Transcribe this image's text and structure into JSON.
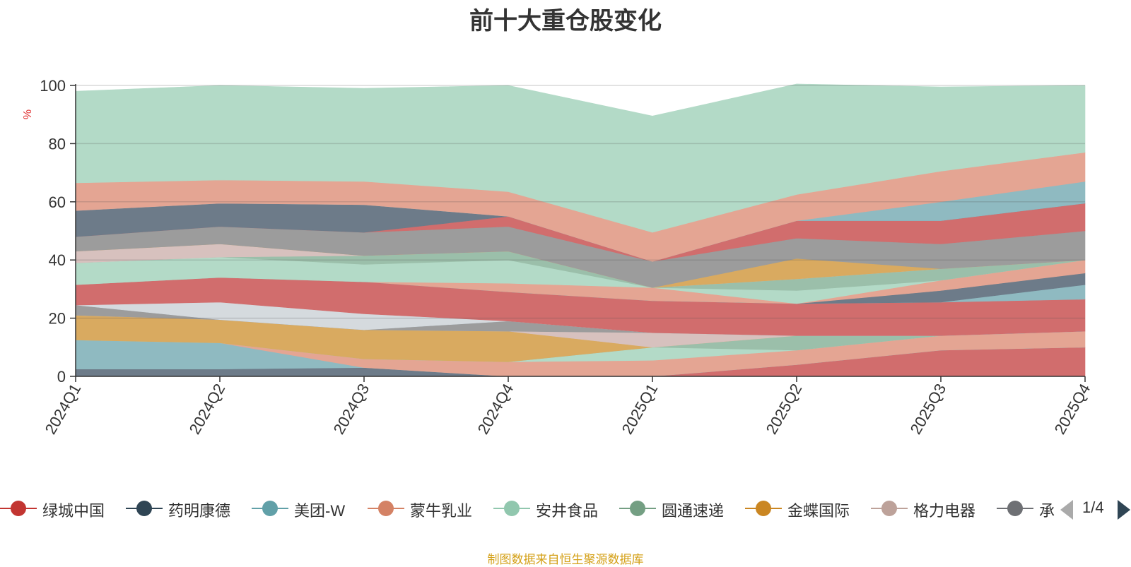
{
  "chart_data": {
    "type": "area",
    "title": "前十大重仓股变化",
    "ylabel": "%",
    "xlabel": "",
    "ylim": [
      0,
      100
    ],
    "yticks": [
      0,
      20,
      40,
      60,
      80,
      100
    ],
    "grid": true,
    "stacked": true,
    "categories": [
      "2024Q1",
      "2024Q2",
      "2024Q3",
      "2024Q4",
      "2025Q1",
      "2025Q2",
      "2025Q3",
      "2025Q4"
    ],
    "colors": [
      "#d16d6d",
      "#6d7b89",
      "#8fbac1",
      "#e4a593",
      "#b3dac7",
      "#9bbfaa",
      "#d9aa60",
      "#d7c1be",
      "#9c9c9c",
      "#7b8f9e",
      "#d5dade",
      "#d16d6d",
      "#8fbac1",
      "#6d7b89",
      "#e4a593",
      "#b3dac7",
      "#9bbfaa",
      "#d7c1be",
      "#d9aa60",
      "#9c9c9c"
    ],
    "series": [
      {
        "name": "绿城中国",
        "values": [
          0,
          0,
          0,
          0,
          0,
          4,
          9,
          10
        ]
      },
      {
        "name": "药明康德",
        "values": [
          2.5,
          2.5,
          3,
          0,
          0,
          0,
          0,
          0
        ]
      },
      {
        "name": "美团-W",
        "values": [
          10,
          9,
          0,
          0,
          0,
          0,
          0,
          0
        ]
      },
      {
        "name": "蒙牛乳业",
        "values": [
          0,
          0,
          3,
          5,
          5.5,
          5,
          5,
          5.5
        ]
      },
      {
        "name": "安井食品",
        "values": [
          0,
          0,
          0,
          0,
          4.5,
          0,
          0,
          0
        ]
      },
      {
        "name": "圆通速递",
        "values": [
          0,
          0,
          0,
          0,
          0,
          5,
          0,
          0
        ]
      },
      {
        "name": "金蝶国际",
        "values": [
          8.5,
          8,
          10,
          10.5,
          0,
          0,
          0,
          0
        ]
      },
      {
        "name": "格力电器",
        "values": [
          0,
          0,
          0,
          0,
          5,
          0,
          0,
          0
        ]
      },
      {
        "name": "",
        "values": [
          3.5,
          0,
          0,
          3.5,
          0,
          0,
          0,
          0
        ]
      },
      {
        "name": "",
        "values": [
          0,
          0,
          0,
          0,
          0,
          0,
          0,
          0
        ]
      },
      {
        "name": "",
        "values": [
          0,
          6,
          5.5,
          0,
          0,
          0,
          0,
          0
        ]
      },
      {
        "name": "",
        "values": [
          7,
          8.5,
          11,
          10,
          11,
          11,
          11.5,
          11
        ]
      },
      {
        "name": "",
        "values": [
          0,
          0,
          0,
          0,
          0,
          0,
          0,
          5
        ]
      },
      {
        "name": "",
        "values": [
          0,
          0,
          0,
          0,
          0,
          0,
          4,
          4
        ]
      },
      {
        "name": "",
        "values": [
          0,
          0,
          0,
          3,
          4.5,
          0,
          3.5,
          4.5
        ]
      },
      {
        "name": "",
        "values": [
          7.5,
          7,
          6,
          8,
          0,
          4.5,
          0,
          0
        ]
      },
      {
        "name": "",
        "values": [
          0,
          0,
          3,
          3,
          0,
          4,
          4,
          0
        ]
      },
      {
        "name": "",
        "values": [
          4,
          4.5,
          0,
          0,
          0,
          0,
          0,
          0
        ]
      },
      {
        "name": "",
        "values": [
          0,
          0,
          0,
          0,
          0,
          7,
          0,
          0
        ]
      },
      {
        "name": "",
        "values": [
          5,
          6,
          8,
          8.5,
          9,
          7,
          8.5,
          10
        ]
      },
      {
        "name": "",
        "values": [
          0,
          0,
          0,
          3.5,
          0,
          6,
          8,
          9.5
        ]
      },
      {
        "name": "",
        "values": [
          9,
          8,
          9.5,
          0,
          0,
          0,
          0,
          0
        ]
      },
      {
        "name": "",
        "values": [
          0,
          0,
          0,
          0,
          0,
          0,
          6.5,
          7.5
        ]
      },
      {
        "name": "",
        "values": [
          9.5,
          8,
          8,
          8.5,
          10,
          9,
          10.5,
          10
        ]
      },
      {
        "name": "",
        "values": [
          31.5,
          32.5,
          32,
          36.5,
          40,
          38,
          29,
          23
        ]
      }
    ]
  },
  "legend": {
    "items": [
      {
        "name": "绿城中国",
        "color": "#c23531"
      },
      {
        "name": "药明康德",
        "color": "#2f4554"
      },
      {
        "name": "美团-W",
        "color": "#61a0a8"
      },
      {
        "name": "蒙牛乳业",
        "color": "#d48265"
      },
      {
        "name": "安井食品",
        "color": "#91c7ae"
      },
      {
        "name": "圆通速递",
        "color": "#749f83"
      },
      {
        "name": "金蝶国际",
        "color": "#ca8622"
      },
      {
        "name": "格力电器",
        "color": "#bda29a"
      },
      {
        "name": "承",
        "color": "#6e7074"
      }
    ],
    "page": "1/4"
  },
  "source": "制图数据来自恒生聚源数据库"
}
